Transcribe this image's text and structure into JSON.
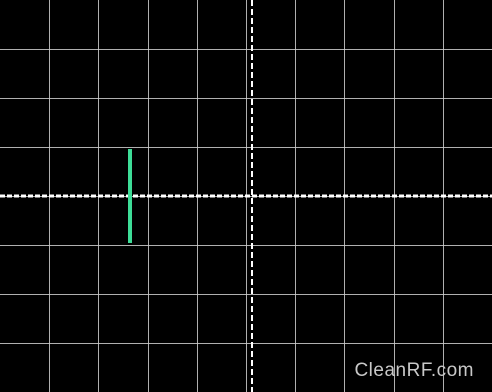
{
  "display": {
    "grid_divisions": {
      "horizontal": 10,
      "vertical": 8
    },
    "background_color": "#000000",
    "grid_color": "#cfcfcf",
    "axis_color": "#ffffff"
  },
  "trace": {
    "color": "#3ddc97",
    "shape": "vertical-pulse"
  },
  "watermark": {
    "text": "CleanRF.com",
    "color": "#c8c8c8"
  }
}
